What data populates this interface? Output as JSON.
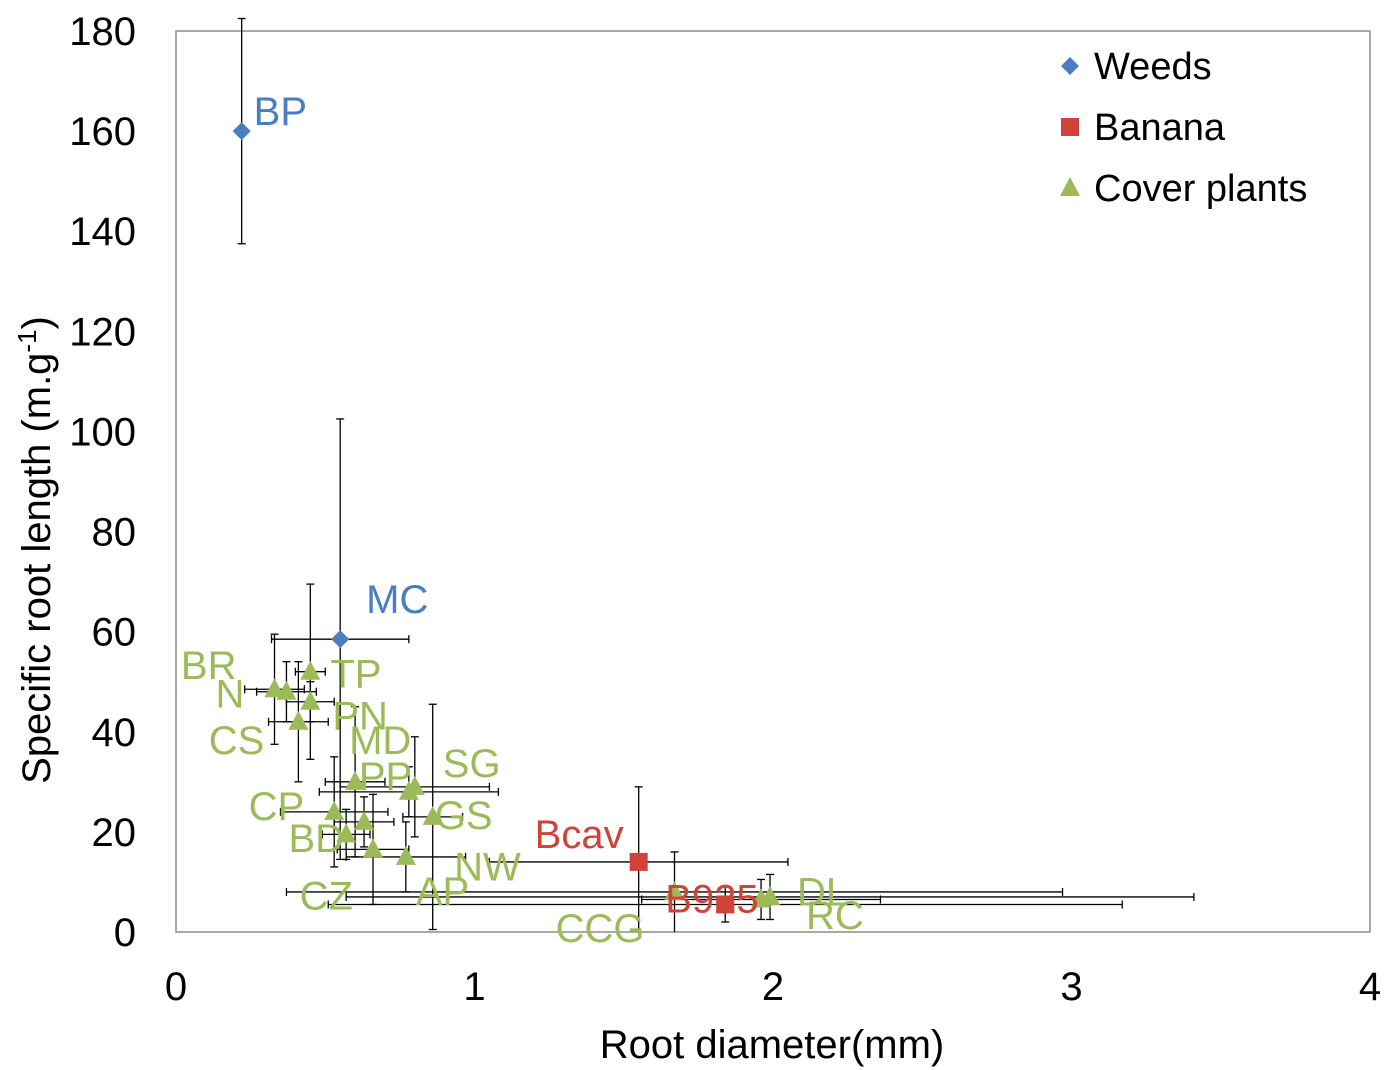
{
  "chart_data": {
    "type": "scatter",
    "xlabel": "Root diameter(mm)",
    "ylabel": "Specific root length (m.g",
    "ylabel_sup": "-1",
    "ylabel_end": ")",
    "xlim": [
      0,
      4
    ],
    "ylim": [
      0,
      180
    ],
    "x_ticks": [
      0,
      1,
      2,
      3,
      4
    ],
    "y_ticks": [
      0,
      20,
      40,
      60,
      80,
      100,
      120,
      140,
      160,
      180
    ],
    "grid": false,
    "legend_position": "top-right",
    "series": [
      {
        "name": "Weeds",
        "marker": "diamond",
        "color": "#4a7ebf",
        "points": [
          {
            "label": "BP",
            "x": 0.22,
            "y": 160,
            "xerr": 0,
            "yerr": 22.5
          },
          {
            "label": "MC",
            "x": 0.55,
            "y": 58.5,
            "xerr": 0.23,
            "yerr": 44
          }
        ]
      },
      {
        "name": "Banana",
        "marker": "square",
        "color": "#d0433b",
        "points": [
          {
            "label": "Bcav",
            "x": 1.55,
            "y": 14,
            "xerr": 0.5,
            "yerr": 15
          },
          {
            "label": "B925",
            "x": 1.84,
            "y": 5.5,
            "xerr": 1.33,
            "yerr": 3.5
          }
        ]
      },
      {
        "name": "Cover plants",
        "marker": "triangle",
        "color": "#9bbb59",
        "points": [
          {
            "label": "BR",
            "x": 0.33,
            "y": 48.5,
            "xerr": 0.1,
            "yerr": 11
          },
          {
            "label": "N",
            "x": 0.37,
            "y": 48,
            "xerr": 0.1,
            "yerr": 6
          },
          {
            "label": "TP",
            "x": 0.45,
            "y": 52,
            "xerr": 0.05,
            "yerr": 17.5
          },
          {
            "label": "PN",
            "x": 0.45,
            "y": 46,
            "xerr": 0.08,
            "yerr": 4
          },
          {
            "label": "CS",
            "x": 0.41,
            "y": 42,
            "xerr": 0.1,
            "yerr": 12
          },
          {
            "label": "MD",
            "x": 0.6,
            "y": 30,
            "xerr": 0.1,
            "yerr": 15
          },
          {
            "label": "SG",
            "x": 0.8,
            "y": 29,
            "xerr": 0.25,
            "yerr": 10
          },
          {
            "label": "PP",
            "x": 0.78,
            "y": 28,
            "xerr": 0.3,
            "yerr": 5
          },
          {
            "label": "GS",
            "x": 0.86,
            "y": 23,
            "xerr": 0.1,
            "yerr": 22.5
          },
          {
            "label": "CP",
            "x": 0.53,
            "y": 24,
            "xerr": 0.18,
            "yerr": 11
          },
          {
            "label": "BD",
            "x": 0.63,
            "y": 22,
            "xerr": 0.1,
            "yerr": 5
          },
          {
            "label": "NW",
            "x": 0.57,
            "y": 19.5,
            "xerr": 0.08,
            "yerr": 5
          },
          {
            "label": "CZ",
            "x": 0.66,
            "y": 16.5,
            "xerr": 0.12,
            "yerr": 11
          },
          {
            "label": "AP",
            "x": 0.77,
            "y": 15,
            "xerr": 0.2,
            "yerr": 7
          },
          {
            "label": "CCG",
            "x": 1.67,
            "y": 8,
            "xerr": 1.3,
            "yerr": 8
          },
          {
            "label": "DL",
            "x": 1.96,
            "y": 6.5,
            "xerr": 0.4,
            "yerr": 4
          },
          {
            "label": "RC",
            "x": 1.99,
            "y": 7,
            "xerr": 1.42,
            "yerr": 4.5
          }
        ]
      }
    ]
  }
}
